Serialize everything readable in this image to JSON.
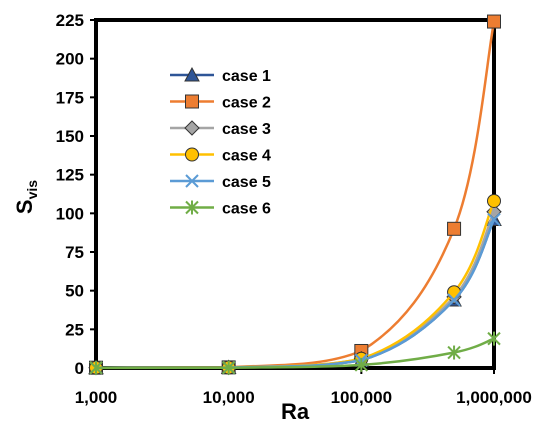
{
  "chart_data": {
    "type": "line",
    "xscale": "log",
    "xlabel": "Ra",
    "ylabel": "S",
    "ylabel_sub": "vis",
    "xlim": [
      1000,
      1000000
    ],
    "ylim": [
      0,
      225
    ],
    "xticks": [
      1000,
      10000,
      100000,
      1000000
    ],
    "xtick_labels": [
      "1,000",
      "10,000",
      "100,000",
      "1,000,000"
    ],
    "yticks": [
      0,
      25,
      50,
      75,
      100,
      125,
      150,
      175,
      200,
      225
    ],
    "ytick_labels": [
      "0",
      "25",
      "50",
      "75",
      "100",
      "125",
      "150",
      "175",
      "200",
      "225"
    ],
    "grid": false,
    "legend_position": "upper-left-inside",
    "x": [
      1000,
      10000,
      100000,
      500000,
      1000000
    ],
    "series": [
      {
        "name": "case 1",
        "values": [
          0.2,
          0.3,
          5,
          44,
          96
        ],
        "color": "#2E5597",
        "marker": "triangle"
      },
      {
        "name": "case 2",
        "values": [
          0.2,
          0.4,
          11,
          90,
          224
        ],
        "color": "#ED7D31",
        "marker": "square"
      },
      {
        "name": "case 3",
        "values": [
          0.2,
          0.3,
          6,
          46,
          101
        ],
        "color": "#A5A5A5",
        "marker": "diamond"
      },
      {
        "name": "case 4",
        "values": [
          0.2,
          0.3,
          6,
          49,
          108
        ],
        "color": "#FFC000",
        "marker": "circle"
      },
      {
        "name": "case 5",
        "values": [
          0.2,
          0.3,
          5,
          44,
          96
        ],
        "color": "#5B9BD5",
        "marker": "x"
      },
      {
        "name": "case 6",
        "values": [
          0.1,
          0.2,
          2,
          10,
          19
        ],
        "color": "#70AD47",
        "marker": "star"
      }
    ]
  }
}
